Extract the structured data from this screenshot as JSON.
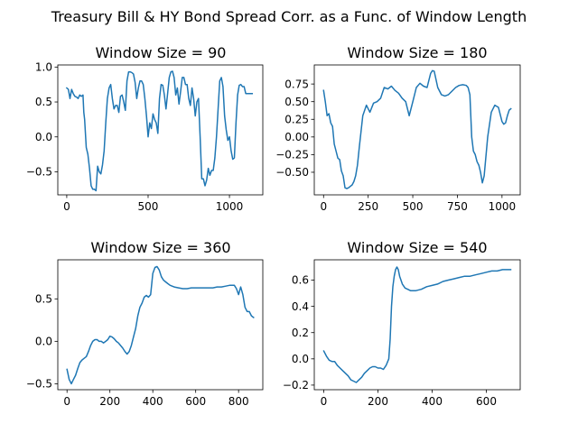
{
  "suptitle": "Treasury Bill & HY Bond Spread Corr. as a Func. of Window Length",
  "line_color": "#1f77b4",
  "chart_data": [
    {
      "type": "line",
      "title": "Window Size = 90",
      "xlim": [
        -55,
        1205
      ],
      "ylim": [
        -0.83,
        1.03
      ],
      "xticks": [
        0,
        500,
        1000
      ],
      "xtick_labels": [
        "0",
        "500",
        "1000"
      ],
      "yticks": [
        -0.5,
        0,
        0.5,
        1.0
      ],
      "ytick_labels": [
        "−0.5",
        "0.0",
        "0.5",
        "1.0"
      ],
      "x": [
        0,
        10,
        20,
        30,
        40,
        50,
        60,
        70,
        80,
        90,
        100,
        105,
        110,
        120,
        130,
        140,
        150,
        160,
        170,
        180,
        190,
        200,
        210,
        220,
        230,
        240,
        250,
        260,
        270,
        280,
        290,
        300,
        310,
        320,
        330,
        340,
        350,
        360,
        370,
        380,
        390,
        400,
        410,
        420,
        430,
        440,
        450,
        460,
        470,
        480,
        490,
        500,
        510,
        520,
        530,
        540,
        550,
        560,
        570,
        580,
        590,
        600,
        610,
        620,
        630,
        640,
        650,
        660,
        670,
        680,
        690,
        700,
        710,
        720,
        730,
        740,
        750,
        760,
        770,
        780,
        790,
        800,
        810,
        820,
        830,
        840,
        850,
        860,
        870,
        880,
        890,
        900,
        910,
        920,
        930,
        940,
        950,
        960,
        970,
        980,
        990,
        1000,
        1010,
        1020,
        1030,
        1040,
        1050,
        1060,
        1070,
        1080,
        1090,
        1100,
        1110,
        1120,
        1130,
        1140
      ],
      "y": [
        0.7,
        0.68,
        0.55,
        0.68,
        0.62,
        0.58,
        0.57,
        0.55,
        0.6,
        0.58,
        0.6,
        0.35,
        0.25,
        -0.15,
        -0.25,
        -0.45,
        -0.7,
        -0.75,
        -0.75,
        -0.77,
        -0.42,
        -0.5,
        -0.53,
        -0.4,
        -0.2,
        0.2,
        0.55,
        0.7,
        0.75,
        0.55,
        0.4,
        0.45,
        0.45,
        0.35,
        0.58,
        0.6,
        0.5,
        0.38,
        0.8,
        0.93,
        0.93,
        0.92,
        0.9,
        0.78,
        0.55,
        0.7,
        0.8,
        0.8,
        0.75,
        0.55,
        0.3,
        0.0,
        0.2,
        0.12,
        0.33,
        0.25,
        0.2,
        0.05,
        0.55,
        0.75,
        0.74,
        0.6,
        0.4,
        0.62,
        0.85,
        0.93,
        0.94,
        0.85,
        0.6,
        0.7,
        0.47,
        0.65,
        0.85,
        0.85,
        0.75,
        0.75,
        0.55,
        0.45,
        0.7,
        0.55,
        0.3,
        0.5,
        0.55,
        0.0,
        -0.6,
        -0.6,
        -0.7,
        -0.62,
        -0.45,
        -0.55,
        -0.48,
        -0.48,
        -0.3,
        0.0,
        0.4,
        0.8,
        0.85,
        0.72,
        0.3,
        0.1,
        -0.05,
        0.0,
        -0.2,
        -0.32,
        -0.3,
        0.2,
        0.6,
        0.74,
        0.75,
        0.72,
        0.72,
        0.62,
        0.62,
        0.62,
        0.62,
        0.62
      ],
      "x_draw_max": 1150
    },
    {
      "type": "line",
      "title": "Window Size = 180",
      "xlim": [
        -52,
        1102
      ],
      "ylim": [
        -0.82,
        1.02
      ],
      "xticks": [
        0,
        250,
        500,
        750,
        1000
      ],
      "xtick_labels": [
        "0",
        "250",
        "500",
        "750",
        "1000"
      ],
      "yticks": [
        -0.5,
        -0.25,
        0.0,
        0.25,
        0.5,
        0.75
      ],
      "ytick_labels": [
        "−0.50",
        "−0.25",
        "0.00",
        "0.25",
        "0.50",
        "0.75"
      ],
      "x": [
        0,
        10,
        20,
        30,
        40,
        50,
        60,
        70,
        80,
        90,
        100,
        110,
        120,
        130,
        140,
        150,
        160,
        170,
        180,
        190,
        200,
        220,
        240,
        260,
        280,
        300,
        320,
        340,
        360,
        380,
        400,
        420,
        440,
        460,
        480,
        500,
        520,
        540,
        560,
        580,
        600,
        610,
        620,
        640,
        660,
        680,
        700,
        720,
        740,
        760,
        780,
        800,
        810,
        820,
        830,
        840,
        850,
        860,
        870,
        880,
        890,
        900,
        920,
        940,
        960,
        980,
        1000,
        1010,
        1020,
        1030,
        1040,
        1050
      ],
      "y": [
        0.66,
        0.5,
        0.3,
        0.33,
        0.2,
        0.15,
        -0.1,
        -0.2,
        -0.3,
        -0.32,
        -0.48,
        -0.55,
        -0.72,
        -0.73,
        -0.72,
        -0.7,
        -0.68,
        -0.63,
        -0.55,
        -0.4,
        -0.15,
        0.3,
        0.45,
        0.35,
        0.48,
        0.5,
        0.55,
        0.7,
        0.68,
        0.72,
        0.66,
        0.62,
        0.55,
        0.5,
        0.3,
        0.5,
        0.7,
        0.76,
        0.72,
        0.7,
        0.9,
        0.94,
        0.93,
        0.7,
        0.6,
        0.58,
        0.6,
        0.65,
        0.7,
        0.73,
        0.74,
        0.73,
        0.7,
        0.6,
        0.0,
        -0.2,
        -0.25,
        -0.35,
        -0.4,
        -0.5,
        -0.65,
        -0.55,
        0.0,
        0.35,
        0.45,
        0.42,
        0.22,
        0.18,
        0.2,
        0.3,
        0.38,
        0.4
      ],
      "x_draw_max": 1050
    },
    {
      "type": "line",
      "title": "Window Size = 360",
      "xlim": [
        -43,
        913
      ],
      "ylim": [
        -0.57,
        0.96
      ],
      "xticks": [
        0,
        200,
        400,
        600,
        800
      ],
      "xtick_labels": [
        "0",
        "200",
        "400",
        "600",
        "800"
      ],
      "yticks": [
        -0.5,
        0.0,
        0.5
      ],
      "ytick_labels": [
        "−0.5",
        "0.0",
        "0.5"
      ],
      "x": [
        0,
        10,
        20,
        30,
        40,
        50,
        60,
        70,
        80,
        90,
        100,
        110,
        120,
        130,
        140,
        150,
        160,
        170,
        180,
        190,
        200,
        210,
        220,
        230,
        240,
        250,
        260,
        270,
        280,
        290,
        300,
        310,
        320,
        330,
        340,
        350,
        360,
        370,
        380,
        390,
        400,
        410,
        420,
        430,
        440,
        450,
        460,
        470,
        480,
        490,
        500,
        520,
        540,
        560,
        580,
        600,
        620,
        640,
        660,
        680,
        700,
        720,
        740,
        760,
        780,
        790,
        800,
        810,
        820,
        830,
        840,
        850,
        860,
        870
      ],
      "y": [
        -0.33,
        -0.45,
        -0.5,
        -0.45,
        -0.4,
        -0.32,
        -0.25,
        -0.22,
        -0.2,
        -0.18,
        -0.12,
        -0.05,
        0.0,
        0.02,
        0.02,
        0.0,
        0.0,
        -0.02,
        0.0,
        0.02,
        0.06,
        0.05,
        0.03,
        0.0,
        -0.02,
        -0.05,
        -0.08,
        -0.12,
        -0.15,
        -0.12,
        -0.05,
        0.05,
        0.15,
        0.3,
        0.4,
        0.45,
        0.52,
        0.54,
        0.52,
        0.55,
        0.8,
        0.87,
        0.88,
        0.84,
        0.76,
        0.72,
        0.7,
        0.68,
        0.66,
        0.65,
        0.64,
        0.63,
        0.62,
        0.62,
        0.63,
        0.63,
        0.63,
        0.63,
        0.63,
        0.63,
        0.64,
        0.64,
        0.65,
        0.66,
        0.66,
        0.62,
        0.55,
        0.64,
        0.55,
        0.4,
        0.35,
        0.35,
        0.3,
        0.28
      ],
      "x_draw_max": 870
    },
    {
      "type": "line",
      "title": "Window Size = 540",
      "xlim": [
        -35,
        725
      ],
      "ylim": [
        -0.235,
        0.755
      ],
      "xticks": [
        0,
        200,
        400,
        600
      ],
      "xtick_labels": [
        "0",
        "200",
        "400",
        "600"
      ],
      "yticks": [
        -0.2,
        0.0,
        0.2,
        0.4,
        0.6
      ],
      "ytick_labels": [
        "−0.2",
        "0.0",
        "0.2",
        "0.4",
        "0.6"
      ],
      "x": [
        0,
        10,
        20,
        30,
        40,
        50,
        60,
        70,
        80,
        90,
        100,
        110,
        120,
        130,
        140,
        150,
        160,
        170,
        180,
        190,
        200,
        210,
        220,
        230,
        240,
        245,
        250,
        255,
        260,
        265,
        270,
        275,
        280,
        290,
        300,
        310,
        320,
        340,
        360,
        380,
        400,
        420,
        440,
        460,
        480,
        500,
        520,
        540,
        560,
        580,
        600,
        620,
        640,
        660,
        680,
        690
      ],
      "y": [
        0.06,
        0.02,
        -0.01,
        -0.02,
        -0.02,
        -0.05,
        -0.07,
        -0.09,
        -0.11,
        -0.13,
        -0.16,
        -0.17,
        -0.18,
        -0.16,
        -0.14,
        -0.11,
        -0.09,
        -0.07,
        -0.06,
        -0.06,
        -0.07,
        -0.07,
        -0.08,
        -0.05,
        0.0,
        0.15,
        0.4,
        0.55,
        0.63,
        0.68,
        0.7,
        0.68,
        0.63,
        0.57,
        0.54,
        0.53,
        0.52,
        0.52,
        0.53,
        0.55,
        0.56,
        0.57,
        0.59,
        0.6,
        0.61,
        0.62,
        0.63,
        0.63,
        0.64,
        0.65,
        0.66,
        0.67,
        0.67,
        0.68,
        0.68,
        0.68
      ],
      "x_draw_max": 690
    }
  ]
}
